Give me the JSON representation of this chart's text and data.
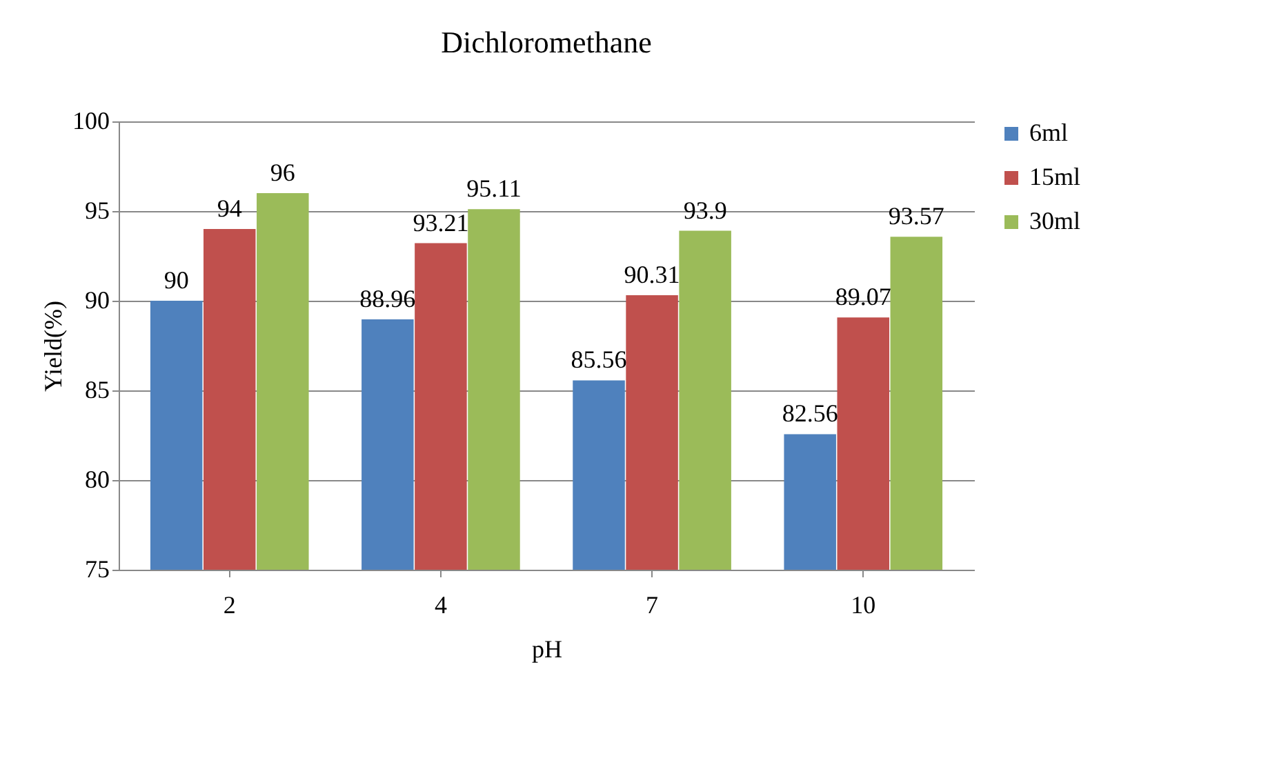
{
  "chart_data": {
    "type": "bar",
    "title": "Dichloromethane",
    "xlabel": "pH",
    "ylabel": "Yield(%)",
    "categories": [
      "2",
      "4",
      "7",
      "10"
    ],
    "series": [
      {
        "name": "6ml",
        "color": "#4f81bd",
        "values": [
          90,
          88.96,
          85.56,
          82.56
        ]
      },
      {
        "name": "15ml",
        "color": "#c0504d",
        "values": [
          94,
          93.21,
          90.31,
          89.07
        ]
      },
      {
        "name": "30ml",
        "color": "#9bbb59",
        "values": [
          96,
          95.11,
          93.9,
          93.57
        ]
      }
    ],
    "ylim": [
      75,
      100
    ],
    "yticks": [
      75,
      80,
      85,
      90,
      95,
      100
    ],
    "grid": "y",
    "legend": "right",
    "data_labels": true
  }
}
